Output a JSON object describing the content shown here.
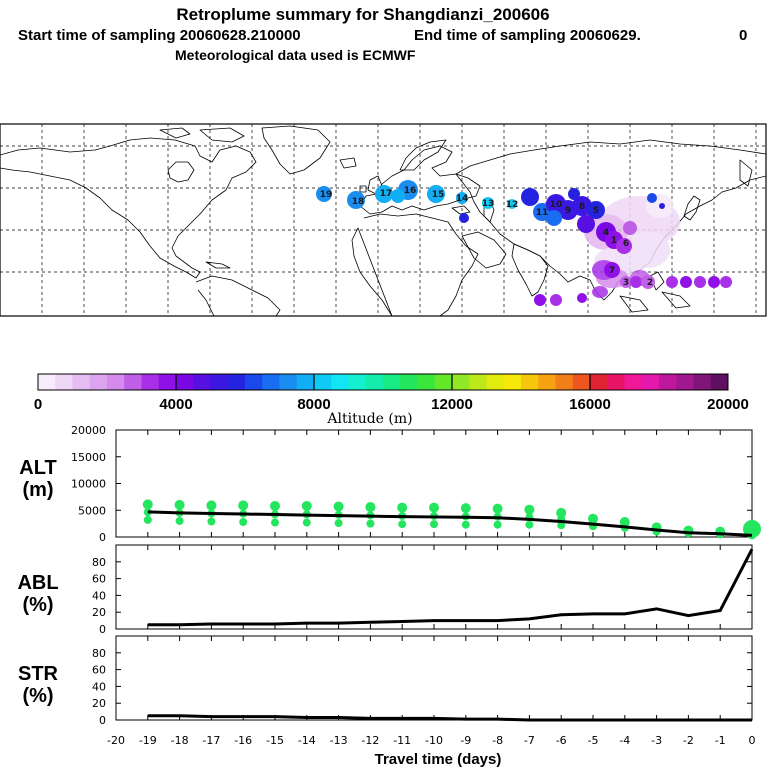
{
  "title": {
    "line1": "Retroplume summary for Shangdianzi_200606",
    "line2_start": "Start time of sampling 20060628.210000",
    "line2_end": "End time of sampling 20060629.",
    "line2_zero": "0",
    "line3": "Meteorological data used is ECMWF"
  },
  "map": {
    "plume_labels": [
      "19",
      "18",
      "17",
      "16",
      "15",
      "14",
      "13",
      "12",
      "11",
      "10",
      "9",
      "8",
      "7",
      "6",
      "5",
      "4",
      "3",
      "2",
      "1"
    ],
    "colors": {
      "plume_light": "#e5b4ef",
      "plume_mid": "#8a0ad8",
      "plume_dark": "#2a10d8",
      "plume_cyan": "#1a96ea"
    }
  },
  "colorbar": {
    "title": "Altitude (m)",
    "tick_labels": [
      "0",
      "4000",
      "8000",
      "12000",
      "16000",
      "20000"
    ],
    "range": [
      0,
      20000
    ],
    "colors": [
      "#f6ecfb",
      "#eed6f6",
      "#e6bdf2",
      "#dca4ee",
      "#d58aec",
      "#c060e8",
      "#a830e8",
      "#9010e8",
      "#7a08e4",
      "#5810e0",
      "#3a18e2",
      "#2424e0",
      "#1a48ea",
      "#1a6cf0",
      "#1a8ef0",
      "#10aef4",
      "#10caf6",
      "#12e6f4",
      "#12f0d0",
      "#14ecac",
      "#18ea86",
      "#24e65e",
      "#3ae63c",
      "#66e82a",
      "#92e824",
      "#bce81c",
      "#e2ea10",
      "#f6e808",
      "#f6c60c",
      "#f6a210",
      "#f27e18",
      "#ee5620",
      "#e02434",
      "#e81468",
      "#f01898",
      "#e418ac",
      "#c0189c",
      "#a01890",
      "#801478",
      "#601060"
    ]
  },
  "chart_data": [
    {
      "type": "line",
      "panel": "ALT (m)",
      "ylabel_line1": "ALT",
      "ylabel_line2": "(m)",
      "ylim": [
        0,
        20000
      ],
      "ytick_labels": [
        "20000",
        "15000",
        "10000",
        "5000",
        "0"
      ],
      "yticks": [
        20000,
        15000,
        10000,
        5000,
        0
      ],
      "x": [
        -19,
        -18,
        -17,
        -16,
        -15,
        -14,
        -13,
        -12,
        -11,
        -10,
        -9,
        -8,
        -7,
        -6,
        -5,
        -4,
        -3,
        -2,
        -1,
        0
      ],
      "series": [
        {
          "name": "mean altitude",
          "values": [
            4700,
            4500,
            4400,
            4300,
            4200,
            4100,
            4000,
            3900,
            3800,
            3750,
            3700,
            3600,
            3300,
            2900,
            2400,
            1900,
            1300,
            800,
            600,
            300
          ]
        },
        {
          "name": "cluster upper",
          "values": [
            6100,
            6000,
            5900,
            5900,
            5800,
            5800,
            5700,
            5600,
            5500,
            5500,
            5400,
            5300,
            5100,
            4500,
            3400,
            2800,
            1800,
            1200,
            1000,
            1500
          ]
        },
        {
          "name": "cluster lower",
          "values": [
            3200,
            3000,
            2900,
            2800,
            2700,
            2700,
            2600,
            2500,
            2400,
            2400,
            2300,
            2300,
            2300,
            2200,
            2000,
            1700,
            1000,
            700,
            500,
            300
          ]
        }
      ]
    },
    {
      "type": "line",
      "panel": "ABL (%)",
      "ylabel_line1": "ABL",
      "ylabel_line2": "(%)",
      "ylim": [
        0,
        100
      ],
      "ytick_labels": [
        "80",
        "60",
        "40",
        "20",
        "0"
      ],
      "yticks": [
        80,
        60,
        40,
        20,
        0
      ],
      "x": [
        -19,
        -18,
        -17,
        -16,
        -15,
        -14,
        -13,
        -12,
        -11,
        -10,
        -9,
        -8,
        -7,
        -6,
        -5,
        -4,
        -3,
        -2,
        -1,
        0
      ],
      "values": [
        5,
        5,
        6,
        6,
        6,
        7,
        7,
        8,
        9,
        10,
        10,
        10,
        12,
        17,
        18,
        18,
        24,
        16,
        22,
        95
      ]
    },
    {
      "type": "line",
      "panel": "STR (%)",
      "ylabel_line1": "STR",
      "ylabel_line2": "(%)",
      "ylim": [
        0,
        100
      ],
      "ytick_labels": [
        "80",
        "60",
        "40",
        "20",
        "0"
      ],
      "yticks": [
        80,
        60,
        40,
        20,
        0
      ],
      "x": [
        -19,
        -18,
        -17,
        -16,
        -15,
        -14,
        -13,
        -12,
        -11,
        -10,
        -9,
        -8,
        -7,
        -6,
        -5,
        -4,
        -3,
        -2,
        -1,
        0
      ],
      "values": [
        5,
        5,
        4,
        4,
        4,
        3,
        3,
        2,
        2,
        2,
        1,
        1,
        0,
        0,
        0,
        0,
        0,
        0,
        0,
        0
      ]
    }
  ],
  "xaxis": {
    "label": "Travel time (days)",
    "tick_labels": [
      "-20",
      "-19",
      "-18",
      "-17",
      "-16",
      "-15",
      "-14",
      "-13",
      "-12",
      "-11",
      "-10",
      "-9",
      "-8",
      "-7",
      "-6",
      "-5",
      "-4",
      "-3",
      "-2",
      "-1",
      "0"
    ],
    "xlim": [
      -20,
      0
    ]
  }
}
